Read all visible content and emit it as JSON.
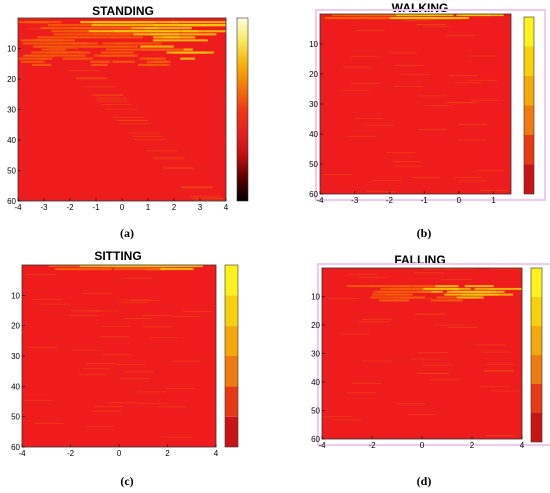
{
  "colors": {
    "base_red": "#ee1c1c",
    "stripe_orange": "#f25d0a",
    "stripe_yellow": "#f6c40a",
    "dark_red": "#9b1010",
    "frame_pink": "#f0c8f0",
    "colorbar_smooth": [
      "#000000",
      "#5a0000",
      "#c01010",
      "#e52020",
      "#ee3a14",
      "#f2780c",
      "#f5b30c",
      "#f8e860",
      "#fffde0"
    ],
    "colorbar_discrete": [
      "#c81414",
      "#e63a14",
      "#ee7a10",
      "#f4a80c",
      "#f6d00a",
      "#fff21c"
    ]
  },
  "chart_data": [
    {
      "type": "heatmap",
      "title": "STANDING",
      "caption": "(a)",
      "xlim": [
        -4,
        4
      ],
      "ylim": [
        0,
        60
      ],
      "y_reversed": true,
      "xticks": [
        "-4",
        "-3",
        "-2",
        "-1",
        "0",
        "1",
        "2",
        "3",
        "4"
      ],
      "yticks": [
        "10",
        "20",
        "30",
        "40",
        "50",
        "60"
      ],
      "colorbar": "continuous",
      "stripe_rows": [
        [
          1,
          0.95
        ],
        [
          2,
          0.85
        ],
        [
          3,
          0.7
        ],
        [
          4,
          0.8
        ],
        [
          5,
          0.6
        ],
        [
          6,
          0.55
        ],
        [
          7,
          0.65
        ],
        [
          8,
          0.45
        ],
        [
          9,
          0.5
        ],
        [
          10,
          0.4
        ],
        [
          11,
          0.45
        ],
        [
          12,
          0.35
        ],
        [
          13,
          0.3
        ],
        [
          14,
          0.25
        ],
        [
          15,
          0.2
        ]
      ]
    },
    {
      "type": "heatmap",
      "title": "WALKING",
      "caption": "(b)",
      "xlim": [
        -4,
        1.5
      ],
      "ylim": [
        0,
        60
      ],
      "y_reversed": true,
      "xticks": [
        "-4",
        "-3",
        "-2",
        "-1",
        "0",
        "1"
      ],
      "yticks": [
        "10",
        "20",
        "30",
        "40",
        "50",
        "60"
      ],
      "colorbar": "discrete",
      "stripe_rows": [
        [
          0,
          1.0
        ],
        [
          1,
          0.9
        ]
      ]
    },
    {
      "type": "heatmap",
      "title": "SITTING",
      "caption": "(c)",
      "xlim": [
        -4,
        4
      ],
      "ylim": [
        0,
        60
      ],
      "y_reversed": true,
      "xticks": [
        "-4",
        "-2",
        "0",
        "2",
        "4"
      ],
      "yticks": [
        "10",
        "20",
        "30",
        "40",
        "50",
        "60"
      ],
      "colorbar": "discrete",
      "stripe_rows": [
        [
          0,
          1.0
        ],
        [
          1,
          0.6
        ]
      ]
    },
    {
      "type": "heatmap",
      "title": "FALLING",
      "caption": "(d)",
      "xlim": [
        -4,
        4
      ],
      "ylim": [
        0,
        60
      ],
      "y_reversed": true,
      "xticks": [
        "-4",
        "-2",
        "0",
        "2",
        "4"
      ],
      "yticks": [
        "10",
        "20",
        "30",
        "40",
        "50",
        "60"
      ],
      "colorbar": "discrete",
      "stripe_rows": [
        [
          6,
          0.5
        ],
        [
          7,
          0.7
        ],
        [
          8,
          0.8
        ],
        [
          9,
          0.6
        ],
        [
          10,
          0.4
        ],
        [
          11,
          0.3
        ]
      ]
    }
  ]
}
